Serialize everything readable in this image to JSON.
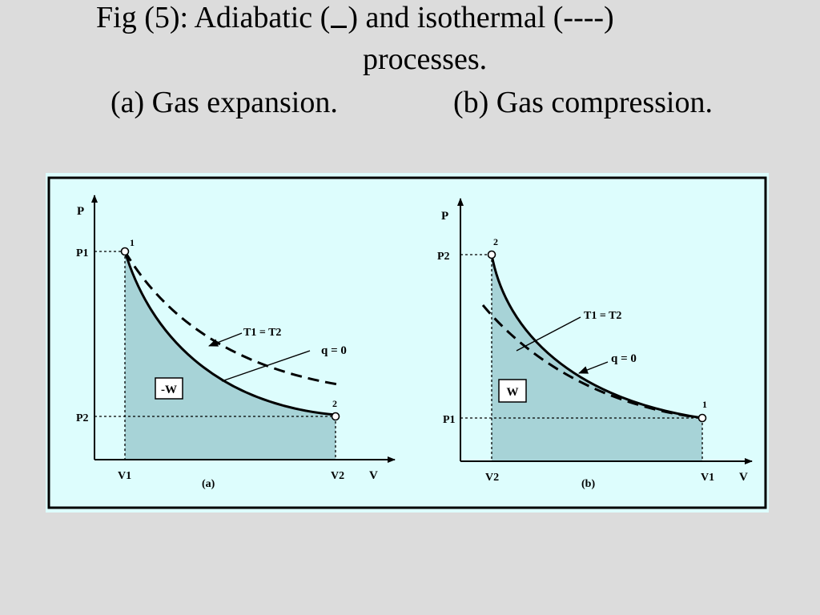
{
  "caption": {
    "line1_prefix": "Fig (5): Adiabatic (",
    "line1_suffix": ") and isothermal (----)",
    "line2": "processes.",
    "part_a": "(a) Gas expansion.",
    "part_b": "(b) Gas compression."
  },
  "colors": {
    "background": "#dcdcdc",
    "panel": "#ddfdfd",
    "work_area": "#a7d3d7",
    "curve": "#000000"
  },
  "diagram_a": {
    "axis_y": "P",
    "axis_x": "V",
    "p_high": "P1",
    "p_low": "P2",
    "v_start": "V1",
    "v_end": "V2",
    "point_start": "1",
    "point_end": "2",
    "isothermal_label": "T1 = T2",
    "adiabatic_label": "q = 0",
    "work_label": "-W",
    "sub_label": "(a)"
  },
  "diagram_b": {
    "axis_y": "P",
    "axis_x": "V",
    "p_high": "P2",
    "p_low": "P1",
    "v_start": "V2",
    "v_end": "V1",
    "point_start": "2",
    "point_end": "1",
    "isothermal_label": "T1 = T2",
    "adiabatic_label": "q = 0",
    "work_label": "W",
    "sub_label": "(b)"
  }
}
